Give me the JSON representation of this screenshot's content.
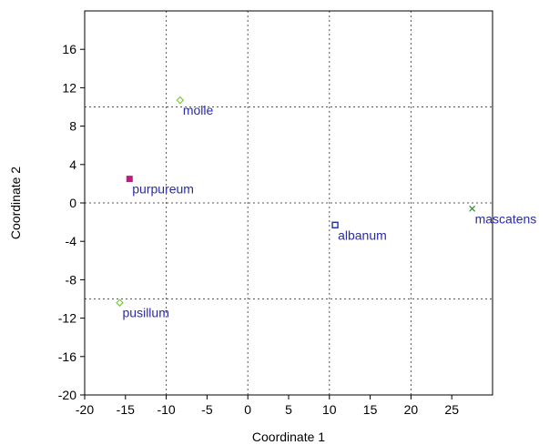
{
  "chart_data": {
    "type": "scatter",
    "title": "",
    "xlabel": "Coordinate 1",
    "ylabel": "Coordinate 2",
    "xlim": [
      -20,
      30
    ],
    "ylim": [
      -20,
      20
    ],
    "xticks": [
      -20,
      -15,
      -10,
      -5,
      0,
      5,
      10,
      15,
      20,
      25
    ],
    "yticks": [
      -20,
      -16,
      -12,
      -8,
      -4,
      0,
      4,
      8,
      12,
      16
    ],
    "grid": {
      "vertical": [
        -10,
        0,
        10,
        20
      ],
      "horizontal": [
        -10,
        0,
        10
      ],
      "style": "dotted"
    },
    "label_color": "#2a2aa8",
    "points": [
      {
        "label": "molle",
        "x": -8.3,
        "y": 10.7,
        "marker": "diamond",
        "color": "#7ac943"
      },
      {
        "label": "purpureum",
        "x": -14.5,
        "y": 2.5,
        "marker": "square-filled",
        "color": "#c2187f"
      },
      {
        "label": "albanum",
        "x": 10.7,
        "y": -2.3,
        "marker": "square-open",
        "color": "#1f2fa8"
      },
      {
        "label": "mascatens",
        "x": 27.5,
        "y": -0.6,
        "marker": "cross",
        "color": "#2f8f2f"
      },
      {
        "label": "pusillum",
        "x": -15.7,
        "y": -10.4,
        "marker": "diamond",
        "color": "#7ac943"
      }
    ]
  }
}
